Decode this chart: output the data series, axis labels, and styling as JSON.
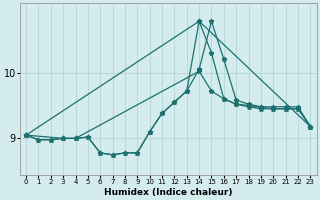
{
  "xlabel": "Humidex (Indice chaleur)",
  "background_color": "#d4ecee",
  "line_color": "#1e7070",
  "grid_color": "#b8d8da",
  "xlim": [
    -0.5,
    23.5
  ],
  "ylim": [
    8.45,
    11.05
  ],
  "yticks": [
    9,
    10
  ],
  "xticks": [
    0,
    1,
    2,
    3,
    4,
    5,
    6,
    7,
    8,
    9,
    10,
    11,
    12,
    13,
    14,
    15,
    16,
    17,
    18,
    19,
    20,
    21,
    22,
    23
  ],
  "series": [
    {
      "x": [
        0,
        1,
        2,
        3,
        4,
        5,
        6,
        7,
        8,
        9,
        10,
        11,
        12,
        13,
        14,
        15,
        16,
        17,
        18,
        19,
        20,
        21,
        22,
        23
      ],
      "y": [
        9.05,
        8.98,
        8.98,
        9.0,
        9.0,
        9.02,
        8.78,
        8.75,
        8.78,
        8.78,
        9.1,
        9.38,
        9.55,
        9.72,
        10.05,
        10.78,
        10.2,
        9.58,
        9.52,
        9.48,
        9.48,
        9.48,
        9.48,
        9.18
      ]
    },
    {
      "x": [
        0,
        1,
        2,
        3,
        4,
        5,
        6,
        7,
        8,
        9,
        10,
        11,
        12,
        13,
        14,
        15,
        16,
        17,
        18,
        19,
        20,
        21,
        22,
        23
      ],
      "y": [
        9.05,
        8.98,
        8.98,
        9.0,
        9.0,
        9.02,
        8.78,
        8.75,
        8.78,
        8.78,
        9.1,
        9.38,
        9.55,
        9.72,
        10.78,
        10.3,
        9.6,
        9.52,
        9.48,
        9.45,
        9.45,
        9.45,
        9.45,
        9.18
      ]
    },
    {
      "x": [
        0,
        3,
        4,
        14,
        15,
        16,
        17,
        18,
        19,
        20,
        21,
        22,
        23
      ],
      "y": [
        9.05,
        9.0,
        9.0,
        10.02,
        9.72,
        9.6,
        9.52,
        9.5,
        9.47,
        9.45,
        9.45,
        9.45,
        9.18
      ]
    },
    {
      "x": [
        0,
        14,
        23
      ],
      "y": [
        9.05,
        10.78,
        9.18
      ]
    }
  ]
}
